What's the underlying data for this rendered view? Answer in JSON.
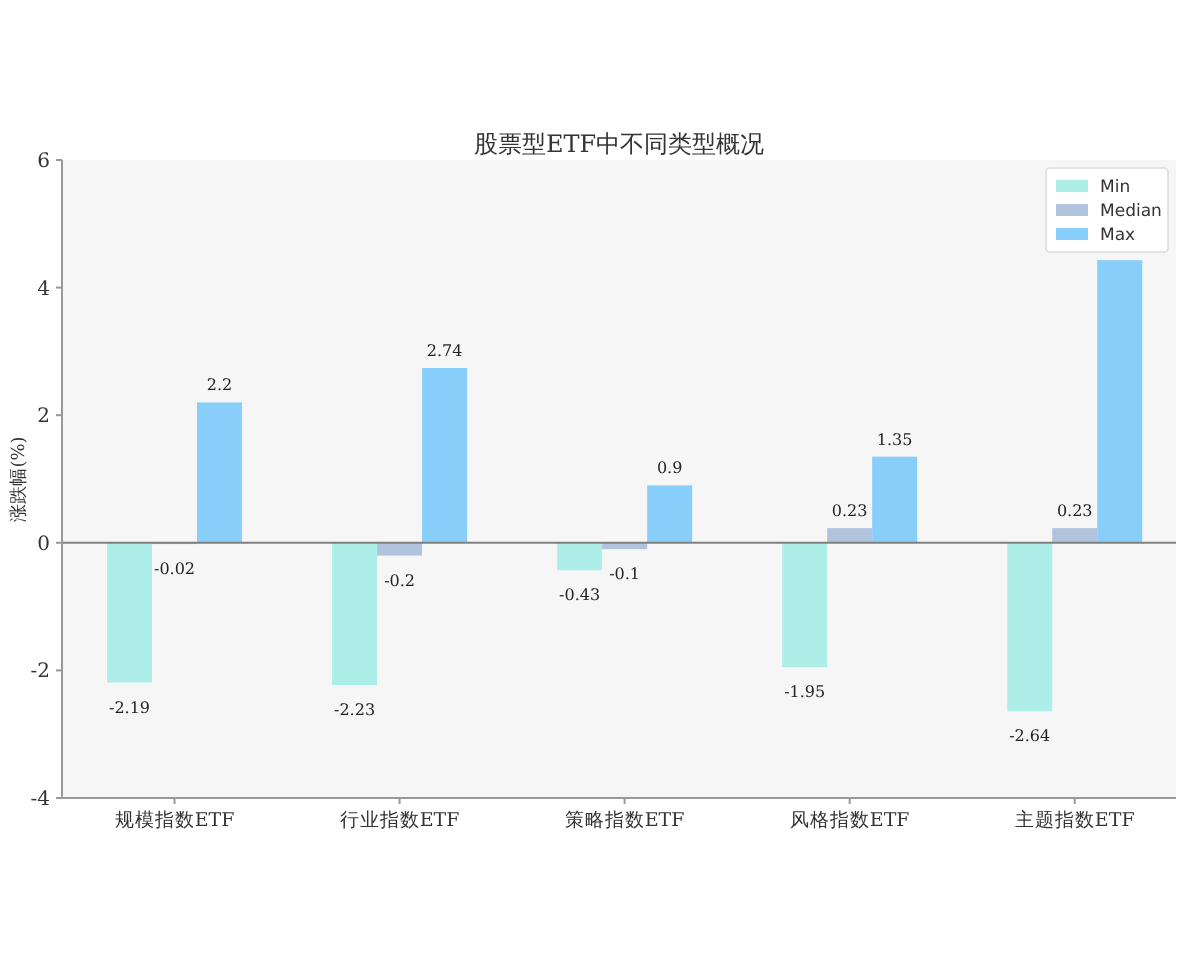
{
  "chart_data": {
    "type": "bar",
    "title": "股票型ETF中不同类型概况",
    "ylabel": "涨跌幅(%)",
    "categories": [
      "规模指数ETF",
      "行业指数ETF",
      "策略指数ETF",
      "风格指数ETF",
      "主题指数ETF"
    ],
    "series": [
      {
        "name": "Min",
        "color": "#aeeee9",
        "values": [
          -2.19,
          -2.23,
          -0.43,
          -1.95,
          -2.64
        ],
        "value_labels": [
          "-2.19",
          "-2.23",
          "-0.43",
          "-1.95",
          "-2.64"
        ]
      },
      {
        "name": "Median",
        "color": "#b0c4de",
        "values": [
          -0.02,
          -0.2,
          -0.1,
          0.23,
          0.23
        ],
        "value_labels": [
          "-0.02",
          "-0.2",
          "-0.1",
          "0.23",
          "0.23"
        ]
      },
      {
        "name": "Max",
        "color": "#87cefa",
        "values": [
          2.2,
          2.74,
          0.9,
          1.35,
          4.43
        ],
        "value_labels": [
          "2.2",
          "2.74",
          "0.9",
          "1.35",
          null
        ]
      }
    ],
    "ylim": [
      -4,
      6
    ],
    "yticks": [
      -4,
      -2,
      0,
      2,
      4,
      6
    ],
    "legend": "top right",
    "ref_lines": [
      {
        "axis": "y",
        "value": 0,
        "color": "#808080"
      }
    ]
  }
}
